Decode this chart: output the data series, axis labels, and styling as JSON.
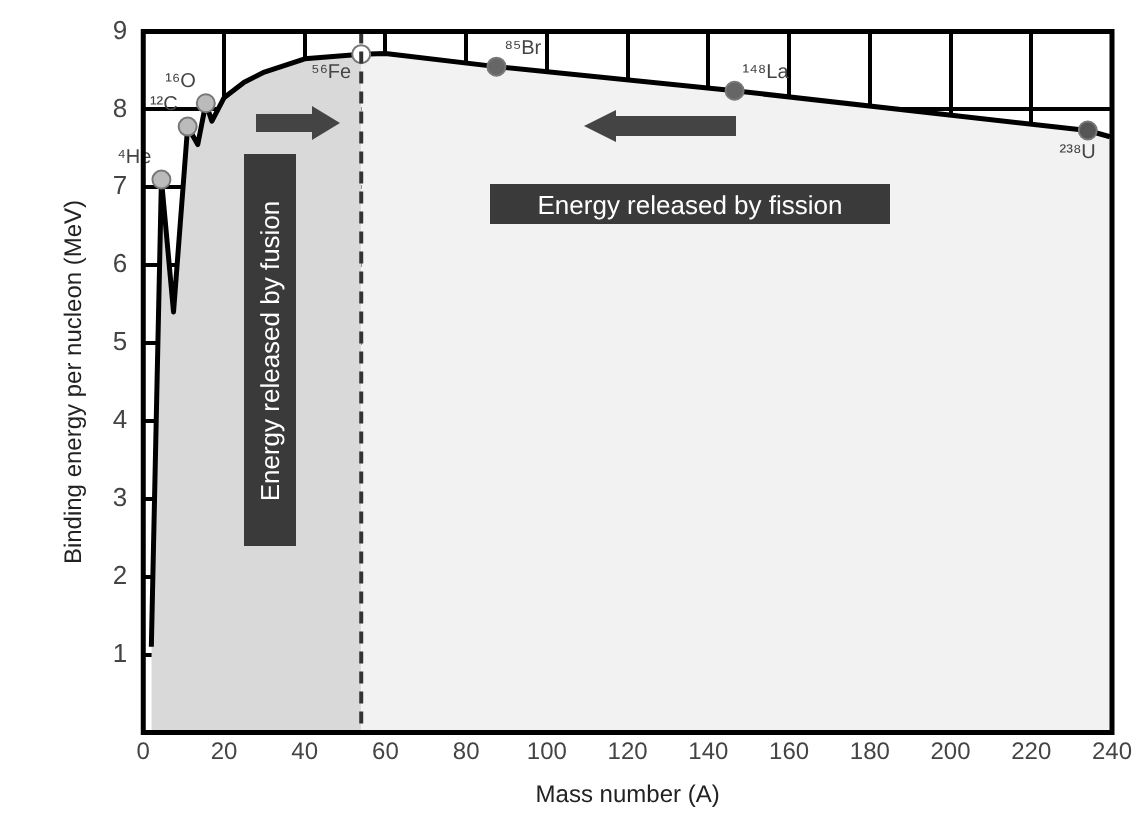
{
  "chart_data": {
    "type": "area",
    "xlabel": "Mass number (A)",
    "ylabel": "Binding energy per nucleon (MeV)",
    "xlim": [
      0,
      240
    ],
    "xticks": [
      0,
      20,
      40,
      60,
      80,
      100,
      120,
      140,
      160,
      180,
      200,
      220,
      240
    ],
    "ylim": [
      0,
      9
    ],
    "yticks": [
      1,
      2,
      3,
      4,
      5,
      6,
      7,
      8,
      9
    ],
    "grid": true,
    "legend": false,
    "series": [
      {
        "color": "#d9d9d9",
        "marker": "none",
        "x": [
          2,
          4.5,
          7.5,
          11,
          13.5,
          15.5,
          17,
          20,
          25,
          30,
          40,
          54
        ],
        "values": [
          1.1,
          7.1,
          5.4,
          7.78,
          7.55,
          8.08,
          7.85,
          8.15,
          8.35,
          8.48,
          8.65,
          8.71
        ]
      },
      {
        "color": "#f2f2f2",
        "marker": "none",
        "x": [
          54,
          60,
          87.5,
          146.5,
          234,
          239.5
        ],
        "values": [
          8.71,
          8.72,
          8.55,
          8.24,
          7.73,
          7.65
        ]
      },
      {
        "type": "scatter",
        "marker": "circle",
        "x": [
          4.5,
          11,
          15.5,
          54,
          87.5,
          146.5,
          234
        ],
        "values": [
          7.1,
          7.78,
          8.08,
          8.71,
          8.55,
          8.24,
          7.73
        ],
        "colors": [
          "#bbbbbb",
          "#bbbbbb",
          "#bbbbbb",
          "#ffffff",
          "#666666",
          "#666666",
          "#555555"
        ]
      }
    ],
    "ref_lines": [
      {
        "axis": "x",
        "value": 54,
        "color": "#333333",
        "line_style": "dashed"
      }
    ],
    "annotations": [
      {
        "text": "⁴He",
        "x": 4.5,
        "y": 7.1
      },
      {
        "text": "¹²C",
        "x": 11,
        "y": 7.78
      },
      {
        "text": "¹⁶O",
        "x": 15.5,
        "y": 8.08
      },
      {
        "text": "⁵⁶Fe",
        "x": 54,
        "y": 8.71
      },
      {
        "text": "⁸⁵Br",
        "x": 87.5,
        "y": 8.55
      },
      {
        "text": "¹⁴⁸La",
        "x": 146.5,
        "y": 8.24
      },
      {
        "text": "²³⁸U",
        "x": 234,
        "y": 7.73
      },
      "Energy released by fusion",
      "Energy released by fission"
    ]
  }
}
